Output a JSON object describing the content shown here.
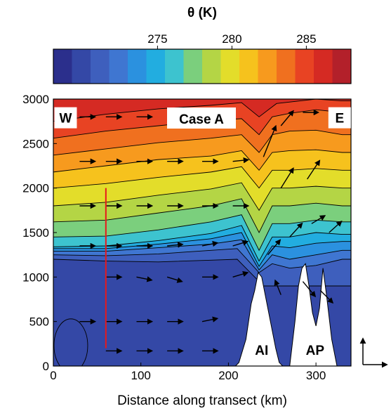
{
  "chart_data": {
    "type": "heatmap",
    "title": "Case A",
    "colorbar": {
      "label": "θ (K)",
      "min": 268,
      "max": 288,
      "step": 1.25,
      "ticks": [
        275,
        280,
        285
      ],
      "colors": [
        "#2b2f8c",
        "#3448a6",
        "#3e5fbd",
        "#3f76d1",
        "#2b91df",
        "#22ade0",
        "#3dc3cf",
        "#7bcf7d",
        "#b4d545",
        "#e3dd2a",
        "#f6c21d",
        "#f79a1e",
        "#f0701f",
        "#e84323",
        "#d52a23",
        "#b3202a"
      ]
    },
    "xlabel": "Distance along transect (km)",
    "xlim": [
      0,
      340
    ],
    "xticks": [
      0,
      100,
      200,
      300
    ],
    "ylabel": "",
    "ylim": [
      0,
      3000
    ],
    "yticks": [
      0,
      500,
      1000,
      1500,
      2000,
      2500,
      3000
    ],
    "isentropes": [
      {
        "theta": 270,
        "pts": [
          [
            0,
            1200
          ],
          [
            60,
            1180
          ],
          [
            120,
            1170
          ],
          [
            180,
            1190
          ],
          [
            210,
            1200
          ],
          [
            230,
            1000
          ],
          [
            240,
            900
          ]
        ]
      },
      {
        "theta": 271.25,
        "pts": [
          [
            0,
            1250
          ],
          [
            60,
            1240
          ],
          [
            120,
            1260
          ],
          [
            180,
            1300
          ],
          [
            210,
            1320
          ],
          [
            235,
            1050
          ],
          [
            250,
            1150
          ],
          [
            270,
            1100
          ],
          [
            300,
            1130
          ],
          [
            330,
            1200
          ]
        ]
      },
      {
        "theta": 272.5,
        "pts": [
          [
            0,
            1290
          ],
          [
            60,
            1290
          ],
          [
            120,
            1330
          ],
          [
            180,
            1370
          ],
          [
            215,
            1420
          ],
          [
            235,
            1080
          ],
          [
            250,
            1250
          ],
          [
            270,
            1200
          ],
          [
            300,
            1250
          ],
          [
            330,
            1300
          ]
        ]
      },
      {
        "theta": 273.75,
        "pts": [
          [
            0,
            1320
          ],
          [
            60,
            1320
          ],
          [
            120,
            1370
          ],
          [
            180,
            1430
          ],
          [
            215,
            1500
          ],
          [
            235,
            1120
          ],
          [
            250,
            1350
          ],
          [
            270,
            1330
          ],
          [
            300,
            1380
          ],
          [
            330,
            1400
          ]
        ]
      },
      {
        "theta": 275,
        "pts": [
          [
            0,
            1340
          ],
          [
            60,
            1350
          ],
          [
            120,
            1410
          ],
          [
            180,
            1490
          ],
          [
            215,
            1580
          ],
          [
            235,
            1180
          ],
          [
            250,
            1450
          ],
          [
            270,
            1450
          ],
          [
            300,
            1500
          ],
          [
            330,
            1480
          ]
        ]
      },
      {
        "theta": 276.25,
        "pts": [
          [
            0,
            1450
          ],
          [
            60,
            1460
          ],
          [
            120,
            1530
          ],
          [
            180,
            1620
          ],
          [
            215,
            1700
          ],
          [
            235,
            1300
          ],
          [
            250,
            1600
          ],
          [
            270,
            1600
          ],
          [
            300,
            1640
          ],
          [
            330,
            1620
          ]
        ]
      },
      {
        "theta": 277.5,
        "pts": [
          [
            0,
            1620
          ],
          [
            60,
            1640
          ],
          [
            120,
            1720
          ],
          [
            180,
            1800
          ],
          [
            215,
            1880
          ],
          [
            235,
            1500
          ],
          [
            250,
            1800
          ],
          [
            270,
            1800
          ],
          [
            300,
            1830
          ],
          [
            330,
            1800
          ]
        ]
      },
      {
        "theta": 278.75,
        "pts": [
          [
            0,
            1800
          ],
          [
            60,
            1840
          ],
          [
            120,
            1920
          ],
          [
            180,
            1990
          ],
          [
            215,
            2060
          ],
          [
            235,
            1750
          ],
          [
            250,
            2000
          ],
          [
            270,
            2000
          ],
          [
            300,
            2020
          ],
          [
            330,
            2000
          ]
        ]
      },
      {
        "theta": 280,
        "pts": [
          [
            0,
            2000
          ],
          [
            60,
            2050
          ],
          [
            120,
            2120
          ],
          [
            180,
            2180
          ],
          [
            215,
            2240
          ],
          [
            235,
            2000
          ],
          [
            250,
            2200
          ],
          [
            270,
            2200
          ],
          [
            300,
            2220
          ],
          [
            330,
            2200
          ]
        ]
      },
      {
        "theta": 281.25,
        "pts": [
          [
            0,
            2180
          ],
          [
            60,
            2250
          ],
          [
            120,
            2320
          ],
          [
            180,
            2360
          ],
          [
            215,
            2420
          ],
          [
            235,
            2200
          ],
          [
            250,
            2400
          ],
          [
            270,
            2420
          ],
          [
            300,
            2430
          ],
          [
            330,
            2400
          ]
        ]
      },
      {
        "theta": 282.5,
        "pts": [
          [
            0,
            2370
          ],
          [
            60,
            2440
          ],
          [
            120,
            2510
          ],
          [
            180,
            2560
          ],
          [
            215,
            2600
          ],
          [
            235,
            2400
          ],
          [
            250,
            2600
          ],
          [
            270,
            2640
          ],
          [
            300,
            2650
          ],
          [
            330,
            2600
          ]
        ]
      },
      {
        "theta": 283.75,
        "pts": [
          [
            0,
            2560
          ],
          [
            60,
            2640
          ],
          [
            120,
            2700
          ],
          [
            180,
            2760
          ],
          [
            215,
            2780
          ],
          [
            235,
            2600
          ],
          [
            250,
            2800
          ],
          [
            270,
            2840
          ],
          [
            300,
            2880
          ],
          [
            330,
            2850
          ]
        ]
      },
      {
        "theta": 285,
        "pts": [
          [
            0,
            2750
          ],
          [
            60,
            2830
          ],
          [
            120,
            2890
          ],
          [
            180,
            2930
          ],
          [
            215,
            2960
          ],
          [
            235,
            2800
          ],
          [
            255,
            2950
          ],
          [
            300,
            3000
          ],
          [
            330,
            2980
          ]
        ]
      }
    ],
    "terrain": [
      [
        208,
        0
      ],
      [
        212,
        40
      ],
      [
        220,
        300
      ],
      [
        226,
        700
      ],
      [
        230,
        850
      ],
      [
        234,
        1050
      ],
      [
        238,
        1000
      ],
      [
        242,
        800
      ],
      [
        248,
        500
      ],
      [
        254,
        200
      ],
      [
        258,
        40
      ],
      [
        262,
        0
      ],
      [
        270,
        0
      ],
      [
        276,
        500
      ],
      [
        280,
        900
      ],
      [
        284,
        1100
      ],
      [
        288,
        1150
      ],
      [
        292,
        900
      ],
      [
        296,
        600
      ],
      [
        300,
        450
      ],
      [
        304,
        650
      ],
      [
        308,
        1100
      ],
      [
        312,
        800
      ],
      [
        318,
        300
      ],
      [
        324,
        0
      ]
    ],
    "terrain_labels": [
      {
        "text": "AI",
        "x": 238,
        "y": 180
      },
      {
        "text": "AP",
        "x": 299,
        "y": 180
      }
    ],
    "corner_labels": [
      {
        "text": "W",
        "x": 14,
        "y": 2790
      },
      {
        "text": "E",
        "x": 327,
        "y": 2790
      }
    ],
    "wind_vectors": [
      {
        "x": 30,
        "y": 2800,
        "u": 1,
        "v": 0
      },
      {
        "x": 60,
        "y": 2800,
        "u": 1,
        "v": 0
      },
      {
        "x": 95,
        "y": 2800,
        "u": 1,
        "v": 0
      },
      {
        "x": 130,
        "y": 2800,
        "u": 1,
        "v": 0
      },
      {
        "x": 30,
        "y": 2300,
        "u": 1,
        "v": 0
      },
      {
        "x": 60,
        "y": 2300,
        "u": 1,
        "v": 0
      },
      {
        "x": 95,
        "y": 2300,
        "u": 1,
        "v": 0
      },
      {
        "x": 130,
        "y": 2300,
        "u": 1,
        "v": 0
      },
      {
        "x": 170,
        "y": 2300,
        "u": 1,
        "v": 0
      },
      {
        "x": 205,
        "y": 2300,
        "u": 1,
        "v": 0.1
      },
      {
        "x": 30,
        "y": 1800,
        "u": 1,
        "v": 0
      },
      {
        "x": 60,
        "y": 1800,
        "u": 1,
        "v": 0
      },
      {
        "x": 95,
        "y": 1800,
        "u": 1,
        "v": 0
      },
      {
        "x": 130,
        "y": 1800,
        "u": 1,
        "v": 0
      },
      {
        "x": 170,
        "y": 1800,
        "u": 1,
        "v": 0
      },
      {
        "x": 205,
        "y": 1800,
        "u": 1,
        "v": 0
      },
      {
        "x": 30,
        "y": 1350,
        "u": 1,
        "v": 0
      },
      {
        "x": 60,
        "y": 1350,
        "u": 1,
        "v": 0
      },
      {
        "x": 95,
        "y": 1350,
        "u": 1,
        "v": 0
      },
      {
        "x": 130,
        "y": 1350,
        "u": 1,
        "v": 0.1
      },
      {
        "x": 170,
        "y": 1350,
        "u": 1,
        "v": 0.2
      },
      {
        "x": 205,
        "y": 1350,
        "u": 1,
        "v": 0.3
      },
      {
        "x": 60,
        "y": 1000,
        "u": 1,
        "v": 0
      },
      {
        "x": 95,
        "y": 1000,
        "u": 1,
        "v": -0.2
      },
      {
        "x": 130,
        "y": 1000,
        "u": 1,
        "v": -0.3
      },
      {
        "x": 170,
        "y": 1000,
        "u": 1,
        "v": 0
      },
      {
        "x": 205,
        "y": 1000,
        "u": 1,
        "v": 0.3
      },
      {
        "x": 30,
        "y": 500,
        "u": 1,
        "v": 0
      },
      {
        "x": 60,
        "y": 500,
        "u": 1,
        "v": 0
      },
      {
        "x": 95,
        "y": 500,
        "u": 1,
        "v": 0
      },
      {
        "x": 130,
        "y": 500,
        "u": 1,
        "v": 0
      },
      {
        "x": 170,
        "y": 500,
        "u": 1,
        "v": 0.2
      },
      {
        "x": 60,
        "y": 170,
        "u": 1,
        "v": 0
      },
      {
        "x": 95,
        "y": 170,
        "u": 1,
        "v": 0
      },
      {
        "x": 130,
        "y": 170,
        "u": 1,
        "v": 0
      },
      {
        "x": 170,
        "y": 170,
        "u": 1,
        "v": 0
      },
      {
        "x": 240,
        "y": 2350,
        "u": 1,
        "v": 2.5
      },
      {
        "x": 260,
        "y": 2700,
        "u": 1,
        "v": 1.2
      },
      {
        "x": 285,
        "y": 2850,
        "u": 1,
        "v": 0
      },
      {
        "x": 260,
        "y": 2000,
        "u": 1,
        "v": 1.6
      },
      {
        "x": 290,
        "y": 2100,
        "u": 1,
        "v": 1.5
      },
      {
        "x": 245,
        "y": 1250,
        "u": 1,
        "v": 1.2
      },
      {
        "x": 270,
        "y": 1450,
        "u": 1,
        "v": 1.1
      },
      {
        "x": 295,
        "y": 1600,
        "u": 1,
        "v": 0.6
      },
      {
        "x": 315,
        "y": 1500,
        "u": 1,
        "v": 0.9
      },
      {
        "x": 260,
        "y": 800,
        "u": -0.4,
        "v": 1
      },
      {
        "x": 285,
        "y": 950,
        "u": 1,
        "v": -1.2
      },
      {
        "x": 305,
        "y": 850,
        "u": 1,
        "v": -1
      }
    ],
    "profile_line": {
      "x": 60,
      "y0": 200,
      "y1": 2000,
      "color": "#e8191b"
    }
  },
  "axis_arrows": {
    "label": ""
  }
}
